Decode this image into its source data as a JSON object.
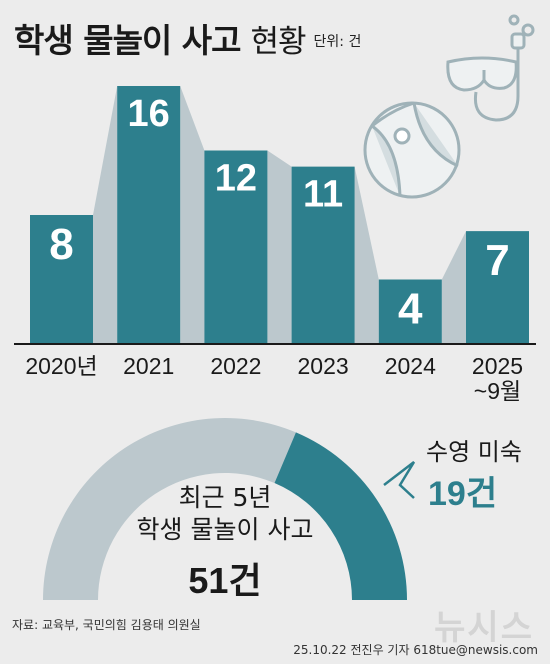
{
  "title": {
    "main": "학생 물놀이 사고",
    "sub": "현황",
    "unit": "단위: 건"
  },
  "chart_data": [
    {
      "type": "bar",
      "categories": [
        "2020년",
        "2021",
        "2022",
        "2023",
        "2024",
        "2025 ~9월"
      ],
      "category_lines": [
        [
          "2020년"
        ],
        [
          "2021"
        ],
        [
          "2022"
        ],
        [
          "2023"
        ],
        [
          "2024"
        ],
        [
          "2025",
          "~9월"
        ]
      ],
      "values": [
        8,
        16,
        12,
        11,
        4,
        7
      ],
      "ylim": [
        0,
        16
      ],
      "bar_color": "#2d7f8d",
      "connector_color": "#bcc8cd"
    },
    {
      "type": "pie",
      "style": "half-donut",
      "total": 51,
      "segments": [
        {
          "label": "수영 미숙",
          "value": 19,
          "color": "#2d7f8d"
        },
        {
          "label": "",
          "value": 32,
          "color": "#bcc8cd"
        }
      ],
      "center_lines": [
        "최근 5년",
        "학생 물놀이 사고",
        "51건"
      ]
    }
  ],
  "callout": {
    "label": "수영 미숙",
    "value": "19건"
  },
  "source": "자료: 교육부, 국민의힘 김용태 의원실",
  "credit": "25.10.22 전진우 기자 618tue@newsis.com",
  "watermark": "뉴시스",
  "icons": [
    "diving-mask-snorkel-icon",
    "beach-ball-icon"
  ]
}
